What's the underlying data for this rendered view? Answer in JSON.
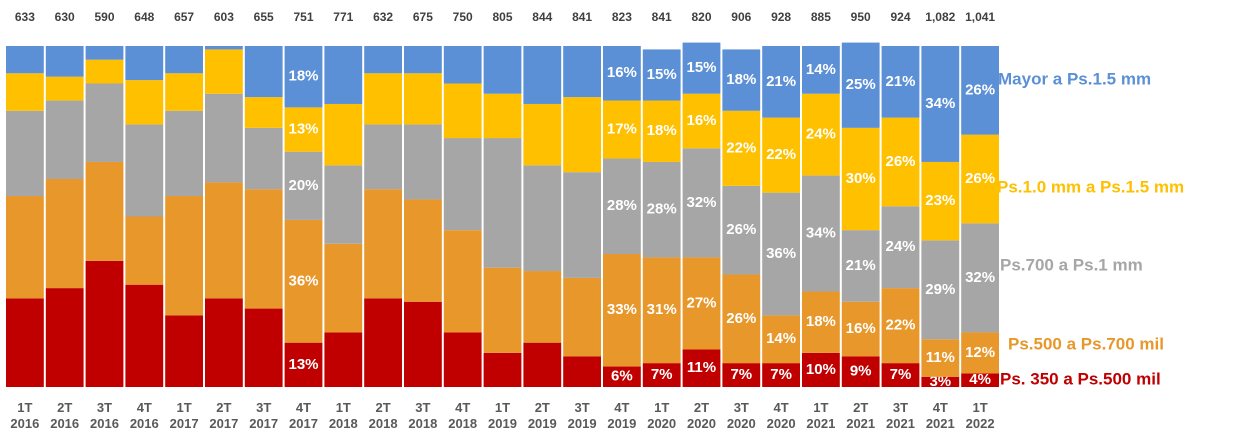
{
  "chart_data": {
    "type": "stacked_bar_100",
    "categories": [
      "1T 2016",
      "2T 2016",
      "3T 2016",
      "4T 2016",
      "1T 2017",
      "2T 2017",
      "3T 2017",
      "4T 2017",
      "1T 2018",
      "2T 2018",
      "3T 2018",
      "4T 2018",
      "1T 2019",
      "2T 2019",
      "3T 2019",
      "4T 2019",
      "1T 2020",
      "2T 2020",
      "3T 2020",
      "4T 2020",
      "1T 2021",
      "2T 2021",
      "3T 2021",
      "4T 2021",
      "1T 2022"
    ],
    "totals": {
      "values": [
        633,
        630,
        590,
        648,
        657,
        603,
        655,
        751,
        771,
        632,
        675,
        750,
        805,
        844,
        841,
        823,
        841,
        820,
        906,
        928,
        885,
        950,
        924,
        1082,
        1041
      ],
      "value_labels": [
        "633",
        "630",
        "590",
        "648",
        "657",
        "603",
        "655",
        "751",
        "771",
        "632",
        "675",
        "750",
        "805",
        "844",
        "841",
        "823",
        "841",
        "820",
        "906",
        "928",
        "885",
        "950",
        "924",
        "1,082",
        "1,041"
      ]
    },
    "ylim": [
      0,
      100
    ],
    "series": [
      {
        "name": "Ps. 350 a Ps.500 mil",
        "color": "#c00000",
        "values": [
          26,
          29,
          37,
          30,
          21,
          26,
          23,
          13,
          16,
          26,
          25,
          16,
          10,
          13,
          9,
          6,
          7,
          11,
          7,
          7,
          10,
          9,
          7,
          3,
          4
        ],
        "value_labels": [
          null,
          null,
          null,
          null,
          null,
          null,
          null,
          "13%",
          null,
          null,
          null,
          null,
          null,
          null,
          null,
          "6%",
          "7%",
          "11%",
          "7%",
          "7%",
          "10%",
          "9%",
          "7%",
          "3%",
          "4%"
        ]
      },
      {
        "name": "Ps.500 a Ps.700 mil",
        "color": "#e8972b",
        "values": [
          30,
          32,
          29,
          20,
          35,
          34,
          35,
          36,
          26,
          32,
          30,
          30,
          25,
          21,
          23,
          33,
          31,
          27,
          26,
          14,
          18,
          16,
          22,
          11,
          12
        ],
        "value_labels": [
          null,
          null,
          null,
          null,
          null,
          null,
          null,
          "36%",
          null,
          null,
          null,
          null,
          null,
          null,
          null,
          "33%",
          "31%",
          "27%",
          "26%",
          "14%",
          "18%",
          "16%",
          "22%",
          "11%",
          "12%"
        ]
      },
      {
        "name": "Ps.700 a Ps.1 mm",
        "color": "#a6a6a6",
        "values": [
          25,
          23,
          23,
          27,
          25,
          26,
          18,
          20,
          23,
          19,
          22,
          27,
          38,
          31,
          31,
          28,
          28,
          32,
          26,
          36,
          34,
          21,
          24,
          29,
          32
        ],
        "value_labels": [
          null,
          null,
          null,
          null,
          null,
          null,
          null,
          "20%",
          null,
          null,
          null,
          null,
          null,
          null,
          null,
          "28%",
          "28%",
          "32%",
          "26%",
          "36%",
          "34%",
          "21%",
          "24%",
          "29%",
          "32%"
        ]
      },
      {
        "name": "Ps.1.0 mm a Ps.1.5 mm",
        "color": "#ffc000",
        "values": [
          11,
          7,
          7,
          13,
          11,
          13,
          9,
          13,
          18,
          15,
          15,
          16,
          13,
          18,
          22,
          17,
          18,
          16,
          22,
          22,
          24,
          30,
          26,
          23,
          26
        ],
        "value_labels": [
          null,
          null,
          null,
          null,
          null,
          null,
          null,
          "13%",
          null,
          null,
          null,
          null,
          null,
          null,
          null,
          "17%",
          "18%",
          "16%",
          "22%",
          "22%",
          "24%",
          "30%",
          "26%",
          "23%",
          "26%"
        ]
      },
      {
        "name": "Mayor a Ps.1.5 mm",
        "color": "#5b8fd6",
        "values": [
          8,
          9,
          4,
          10,
          8,
          1,
          15,
          18,
          17,
          8,
          8,
          11,
          14,
          17,
          15,
          16,
          15,
          15,
          18,
          21,
          14,
          25,
          21,
          34,
          26
        ],
        "value_labels": [
          null,
          null,
          null,
          null,
          null,
          null,
          null,
          "18%",
          null,
          null,
          null,
          null,
          null,
          null,
          null,
          "16%",
          "15%",
          "15%",
          "18%",
          "21%",
          "14%",
          "25%",
          "21%",
          "34%",
          "26%"
        ]
      }
    ]
  }
}
